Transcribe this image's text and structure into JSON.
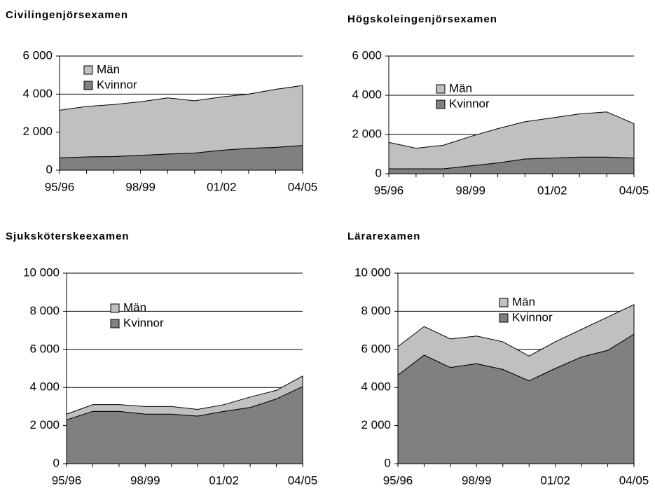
{
  "chart_data": [
    {
      "type": "area",
      "stacked": true,
      "title": "Civilingenjörsexamen",
      "categories": [
        "95/96",
        null,
        null,
        "98/99",
        null,
        null,
        "01/02",
        null,
        null,
        "04/05"
      ],
      "series": [
        {
          "name": "Kvinnor",
          "color": "#808080",
          "values": [
            650,
            700,
            720,
            780,
            850,
            900,
            1050,
            1150,
            1200,
            1300
          ]
        },
        {
          "name": "Män",
          "color": "#c0c0c0",
          "values": [
            2500,
            2650,
            2730,
            2820,
            2950,
            2750,
            2800,
            2850,
            3050,
            3150
          ]
        }
      ],
      "ylim": [
        0,
        6000
      ],
      "yticks": [
        0,
        {
          "value": 2000,
          "label": "2 000"
        },
        {
          "value": 4000,
          "label": "4 000"
        },
        {
          "value": 6000,
          "label": "6 000"
        }
      ],
      "grid": true
    },
    {
      "type": "area",
      "stacked": true,
      "title": "Högskoleingenjörsexamen",
      "categories": [
        "95/96",
        null,
        null,
        "98/99",
        null,
        null,
        "01/02",
        null,
        null,
        "04/05"
      ],
      "series": [
        {
          "name": "Kvinnor",
          "color": "#808080",
          "values": [
            250,
            250,
            250,
            400,
            550,
            750,
            800,
            850,
            850,
            800
          ]
        },
        {
          "name": "Män",
          "color": "#c0c0c0",
          "values": [
            1350,
            1050,
            1200,
            1500,
            1750,
            1900,
            2050,
            2200,
            2300,
            1750
          ]
        }
      ],
      "ylim": [
        0,
        6000
      ],
      "yticks": [
        0,
        {
          "value": 2000,
          "label": "2 000"
        },
        {
          "value": 4000,
          "label": "4 000"
        },
        {
          "value": 6000,
          "label": "6 000"
        }
      ],
      "grid": true
    },
    {
      "type": "area",
      "stacked": true,
      "title": "Sjuksköterskeexamen",
      "categories": [
        "95/96",
        null,
        null,
        "98/99",
        null,
        null,
        "01/02",
        null,
        null,
        "04/05"
      ],
      "series": [
        {
          "name": "Kvinnor",
          "color": "#808080",
          "values": [
            2300,
            2750,
            2750,
            2600,
            2600,
            2500,
            2750,
            2950,
            3400,
            4050
          ]
        },
        {
          "name": "Män",
          "color": "#c0c0c0",
          "values": [
            300,
            350,
            350,
            400,
            400,
            350,
            350,
            550,
            450,
            550
          ]
        }
      ],
      "ylim": [
        0,
        10000
      ],
      "yticks": [
        0,
        {
          "value": 2000,
          "label": "2 000"
        },
        {
          "value": 4000,
          "label": "4 000"
        },
        {
          "value": 6000,
          "label": "6 000"
        },
        {
          "value": 8000,
          "label": "8 000"
        },
        {
          "value": 10000,
          "label": "10 000"
        }
      ],
      "grid": true
    },
    {
      "type": "area",
      "stacked": true,
      "title": "Lärarexamen",
      "categories": [
        "95/96",
        null,
        null,
        "98/99",
        null,
        null,
        "01/02",
        null,
        null,
        "04/05"
      ],
      "series": [
        {
          "name": "Kvinnor",
          "color": "#808080",
          "values": [
            4650,
            5700,
            5050,
            5250,
            4950,
            4350,
            5000,
            5600,
            5950,
            6800
          ]
        },
        {
          "name": "Män",
          "color": "#c0c0c0",
          "values": [
            1500,
            1500,
            1500,
            1450,
            1450,
            1300,
            1400,
            1450,
            1750,
            1550
          ]
        }
      ],
      "ylim": [
        0,
        10000
      ],
      "yticks": [
        0,
        {
          "value": 2000,
          "label": "2 000"
        },
        {
          "value": 4000,
          "label": "4 000"
        },
        {
          "value": 6000,
          "label": "6 000"
        },
        {
          "value": 8000,
          "label": "8 000"
        },
        {
          "value": 10000,
          "label": "10 000"
        }
      ],
      "grid": true
    }
  ]
}
